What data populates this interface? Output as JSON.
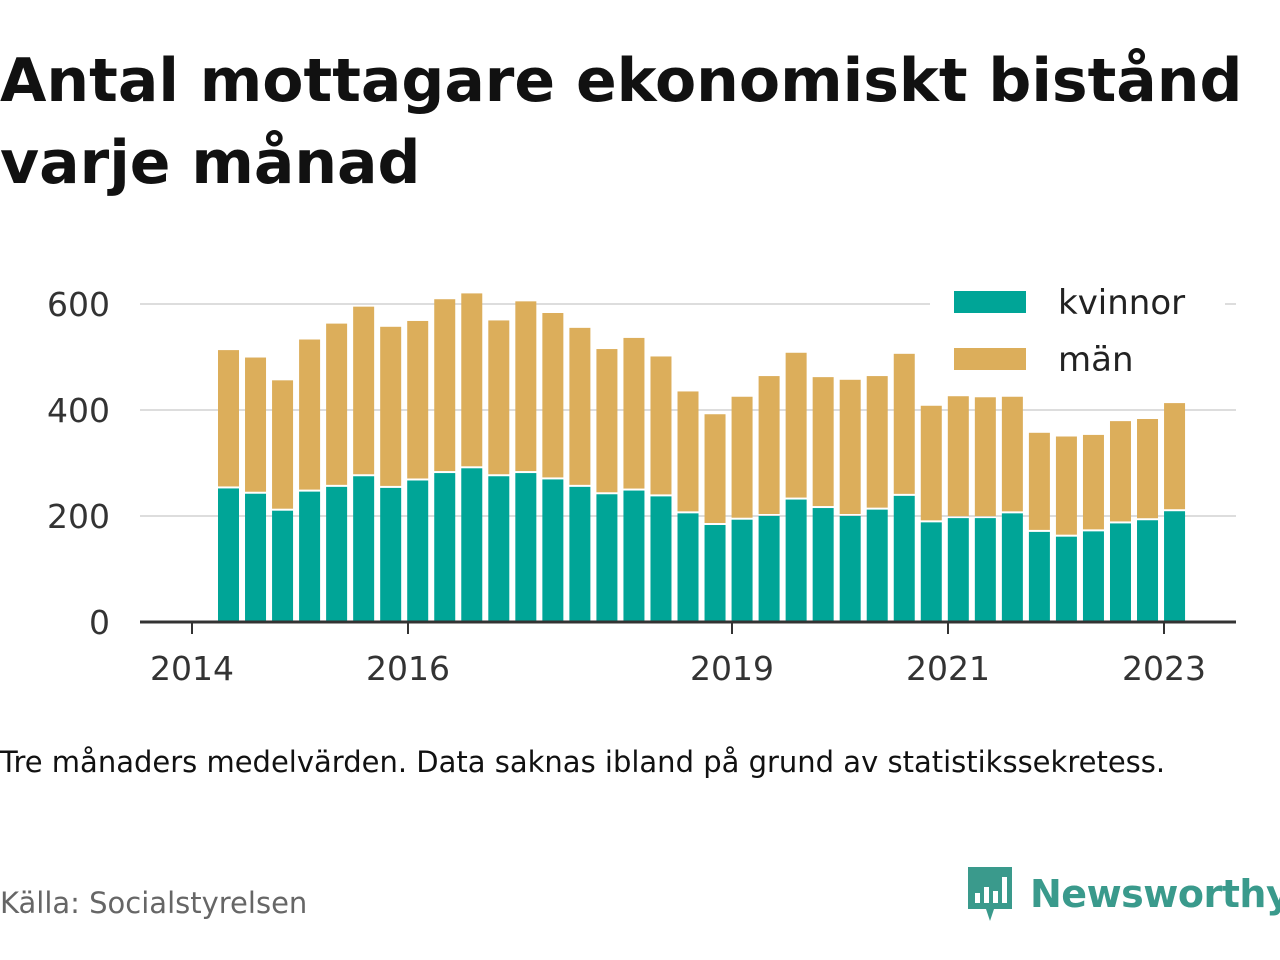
{
  "title": "Antal mottagare ekonomiskt bistånd varje månad",
  "note": "Tre månaders medelvärden. Data saknas ibland på grund av statistikssekretess.",
  "source": "Källa: Socialstyrelsen",
  "brand": "Newsworthy",
  "colors": {
    "kvinnor": "#00a597",
    "man": "#dcae5b",
    "grid": "#dddddd",
    "axis": "#333333",
    "brand": "#3a9a8c"
  },
  "chart_data": {
    "type": "bar",
    "stacked": true,
    "x_axis_ticks": [
      "2014",
      "2016",
      "2019",
      "2021",
      "2023"
    ],
    "y_axis_ticks": [
      "0",
      "200",
      "400",
      "600"
    ],
    "ylim": [
      0,
      650
    ],
    "grid": true,
    "legend_position": "top-right",
    "series": [
      {
        "name": "kvinnor",
        "values": [
          252,
          242,
          210,
          246,
          255,
          275,
          253,
          267,
          281,
          290,
          275,
          281,
          269,
          255,
          241,
          248,
          237,
          205,
          183,
          193,
          200,
          231,
          215,
          200,
          212,
          238,
          188,
          196,
          196,
          205,
          170,
          161,
          171,
          186,
          192,
          209
        ]
      },
      {
        "name": "män",
        "values": [
          261,
          257,
          246,
          287,
          308,
          320,
          304,
          301,
          328,
          330,
          294,
          324,
          314,
          300,
          274,
          288,
          264,
          230,
          209,
          232,
          264,
          277,
          247,
          257,
          252,
          268,
          220,
          230,
          228,
          220,
          187,
          189,
          182,
          193,
          191,
          204
        ]
      }
    ]
  }
}
